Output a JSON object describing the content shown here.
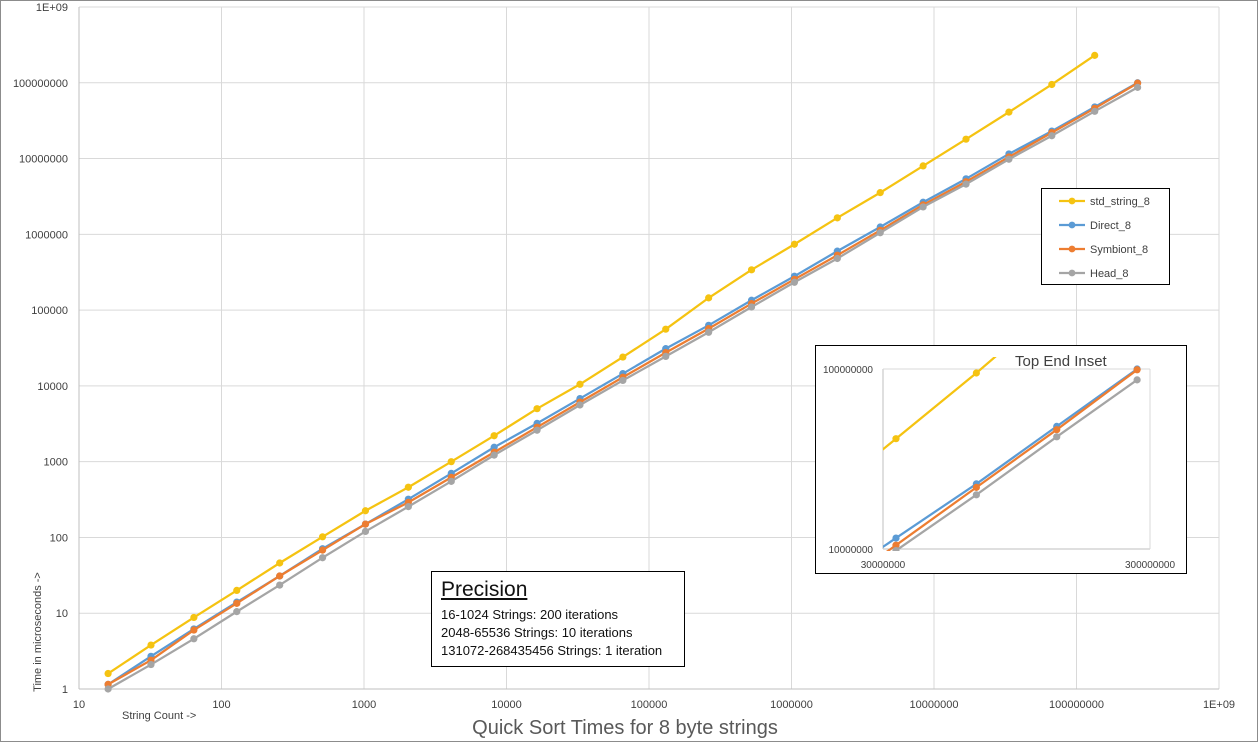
{
  "chart_data": [
    {
      "type": "line",
      "title": "Quick Sort Times for 8 byte strings",
      "xlabel": "String Count ->",
      "ylabel": "Time in microseconds ->",
      "xscale": "log",
      "yscale": "log",
      "xlim": [
        10,
        1000000000
      ],
      "ylim": [
        1,
        1000000000
      ],
      "grid": true,
      "legend": "right",
      "x_ticks": [
        "10",
        "100",
        "1000",
        "10000",
        "100000",
        "1000000",
        "10000000",
        "100000000",
        "1E+09"
      ],
      "y_ticks": [
        "1",
        "10",
        "100",
        "1000",
        "10000",
        "100000",
        "1000000",
        "10000000",
        "100000000",
        "1E+09"
      ],
      "x": [
        16,
        32,
        64,
        128,
        256,
        512,
        1024,
        2048,
        4096,
        8192,
        16384,
        32768,
        65536,
        131072,
        262144,
        524288,
        1048576,
        2097152,
        4194304,
        8388608,
        16777216,
        33554432,
        67108864,
        134217728,
        268435456
      ],
      "series": [
        {
          "name": "std_string_8",
          "color": "#f5c311",
          "values": [
            1.6,
            3.8,
            8.8,
            20,
            46,
            102,
            225,
            460,
            1000,
            2200,
            5000,
            10500,
            24000,
            56000,
            145000,
            340000,
            740000,
            1650000,
            3550000,
            8000000,
            18000000,
            41000000,
            95000000,
            230000000,
            null
          ]
        },
        {
          "name": "Direct_8",
          "color": "#5b9bd5",
          "values": [
            1.15,
            2.7,
            6.2,
            14,
            31,
            71,
            150,
            320,
            700,
            1550,
            3200,
            6800,
            14500,
            31000,
            63000,
            135000,
            280000,
            600000,
            1250000,
            2650000,
            5400000,
            11500000,
            23000000,
            48000000,
            100000000
          ]
        },
        {
          "name": "Symbiont_8",
          "color": "#ed7d31",
          "values": [
            1.15,
            2.4,
            6.0,
            13.5,
            31,
            68,
            150,
            290,
            620,
            1330,
            2850,
            6100,
            13000,
            27500,
            57000,
            122000,
            255000,
            530000,
            1130000,
            2450000,
            4950000,
            10500000,
            22000000,
            46000000,
            99000000
          ]
        },
        {
          "name": "Head_8",
          "color": "#a5a5a5",
          "values": [
            1.0,
            2.1,
            4.6,
            10.5,
            23.5,
            54,
            120,
            255,
            550,
            1220,
            2600,
            5600,
            11800,
            24500,
            51000,
            110000,
            233000,
            480000,
            1050000,
            2300000,
            4600000,
            9800000,
            20000000,
            42000000,
            87000000
          ]
        }
      ]
    },
    {
      "type": "line",
      "title": "Top End Inset",
      "xscale": "log",
      "yscale": "log",
      "xlim": [
        30000000,
        300000000
      ],
      "ylim": [
        10000000,
        100000000
      ],
      "x_ticks": [
        "30000000",
        "300000000"
      ],
      "y_ticks": [
        "10000000",
        "100000000"
      ],
      "x": [
        33554432,
        67108864,
        134217728,
        268435456
      ],
      "series": [
        {
          "name": "std_string_8",
          "color": "#f5c311",
          "values": [
            41000000,
            95000000,
            230000000,
            null
          ]
        },
        {
          "name": "Direct_8",
          "color": "#5b9bd5",
          "values": [
            11500000,
            23000000,
            48000000,
            100000000
          ]
        },
        {
          "name": "Symbiont_8",
          "color": "#ed7d31",
          "values": [
            10500000,
            22000000,
            46000000,
            99000000
          ]
        },
        {
          "name": "Head_8",
          "color": "#a5a5a5",
          "values": [
            9800000,
            20000000,
            42000000,
            87000000
          ]
        }
      ]
    }
  ],
  "precision": {
    "title": "Precision",
    "lines": [
      "16-1024  Strings: 200 iterations",
      "2048-65536  Strings: 10 iterations",
      "131072-268435456  Strings: 1 iteration"
    ]
  }
}
